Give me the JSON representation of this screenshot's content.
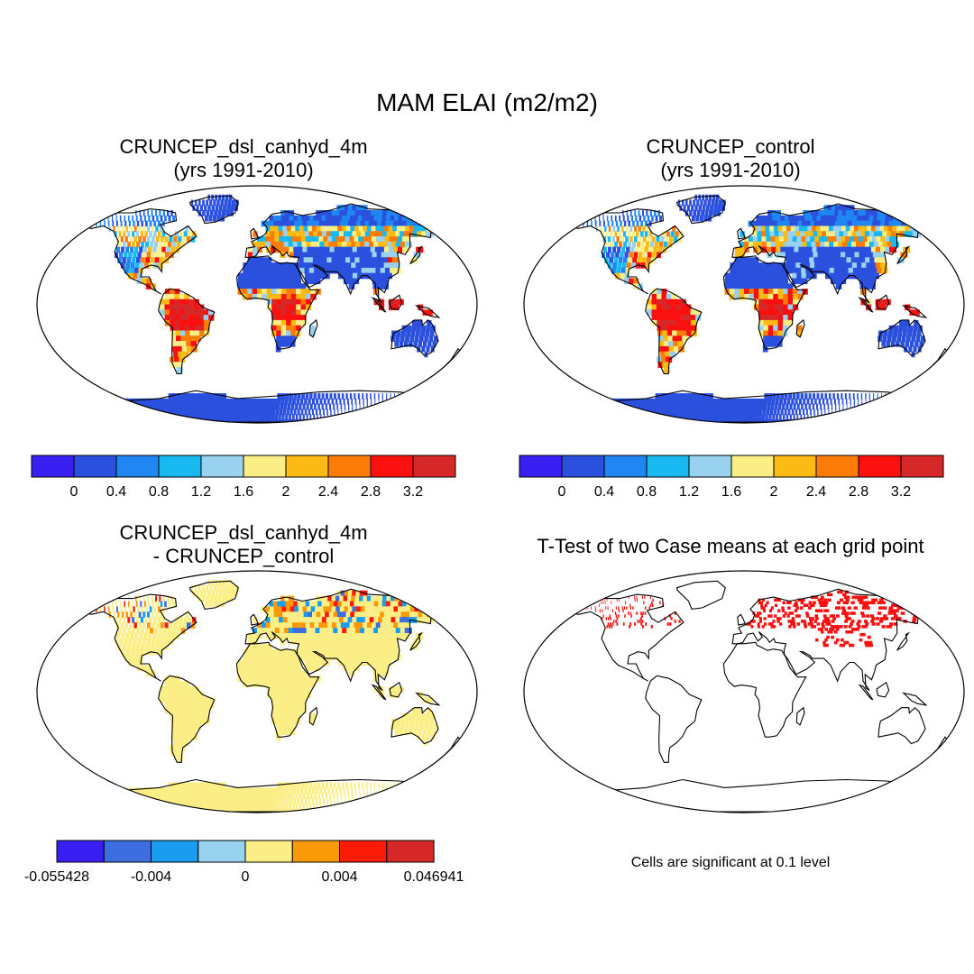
{
  "main_title": "MAM ELAI (m2/m2)",
  "panels": [
    {
      "id": "p1",
      "title_line1": "CRUNCEP_dsl_canhyd_4m",
      "title_line2": "(yrs 1991-2010)",
      "field": "elai_test"
    },
    {
      "id": "p2",
      "title_line1": "CRUNCEP_control",
      "title_line2": "(yrs 1991-2010)",
      "field": "elai_control"
    },
    {
      "id": "p3",
      "title_line1": "CRUNCEP_dsl_canhyd_4m",
      "title_line2": "- CRUNCEP_control",
      "field": "difference"
    },
    {
      "id": "p4",
      "title_line1": "T-Test of two Case means at each grid point",
      "title_line2": "",
      "field": "significance",
      "note": "Cells are significant at 0.1 level"
    }
  ],
  "colorbar_abs": {
    "colors": [
      "#3a1ff2",
      "#2b50de",
      "#1f86f2",
      "#17b9f0",
      "#98d2ee",
      "#fbee86",
      "#fbba14",
      "#fb7d08",
      "#fb1010",
      "#d62828"
    ],
    "labels": [
      "0",
      "0.4",
      "0.8",
      "1.2",
      "1.6",
      "2",
      "2.4",
      "2.8",
      "3.2"
    ]
  },
  "colorbar_diff": {
    "colors": [
      "#3a1ff2",
      "#3d6ee0",
      "#1a9cef",
      "#98d2ee",
      "#fbee86",
      "#fb9a08",
      "#fb1c08",
      "#d62828"
    ],
    "labels": [
      "-0.055428",
      "-0.004",
      "0",
      "0.004",
      "0.046941"
    ]
  },
  "colors": {
    "land_outline": "#000000",
    "significant_cell": "#fb1010"
  }
}
